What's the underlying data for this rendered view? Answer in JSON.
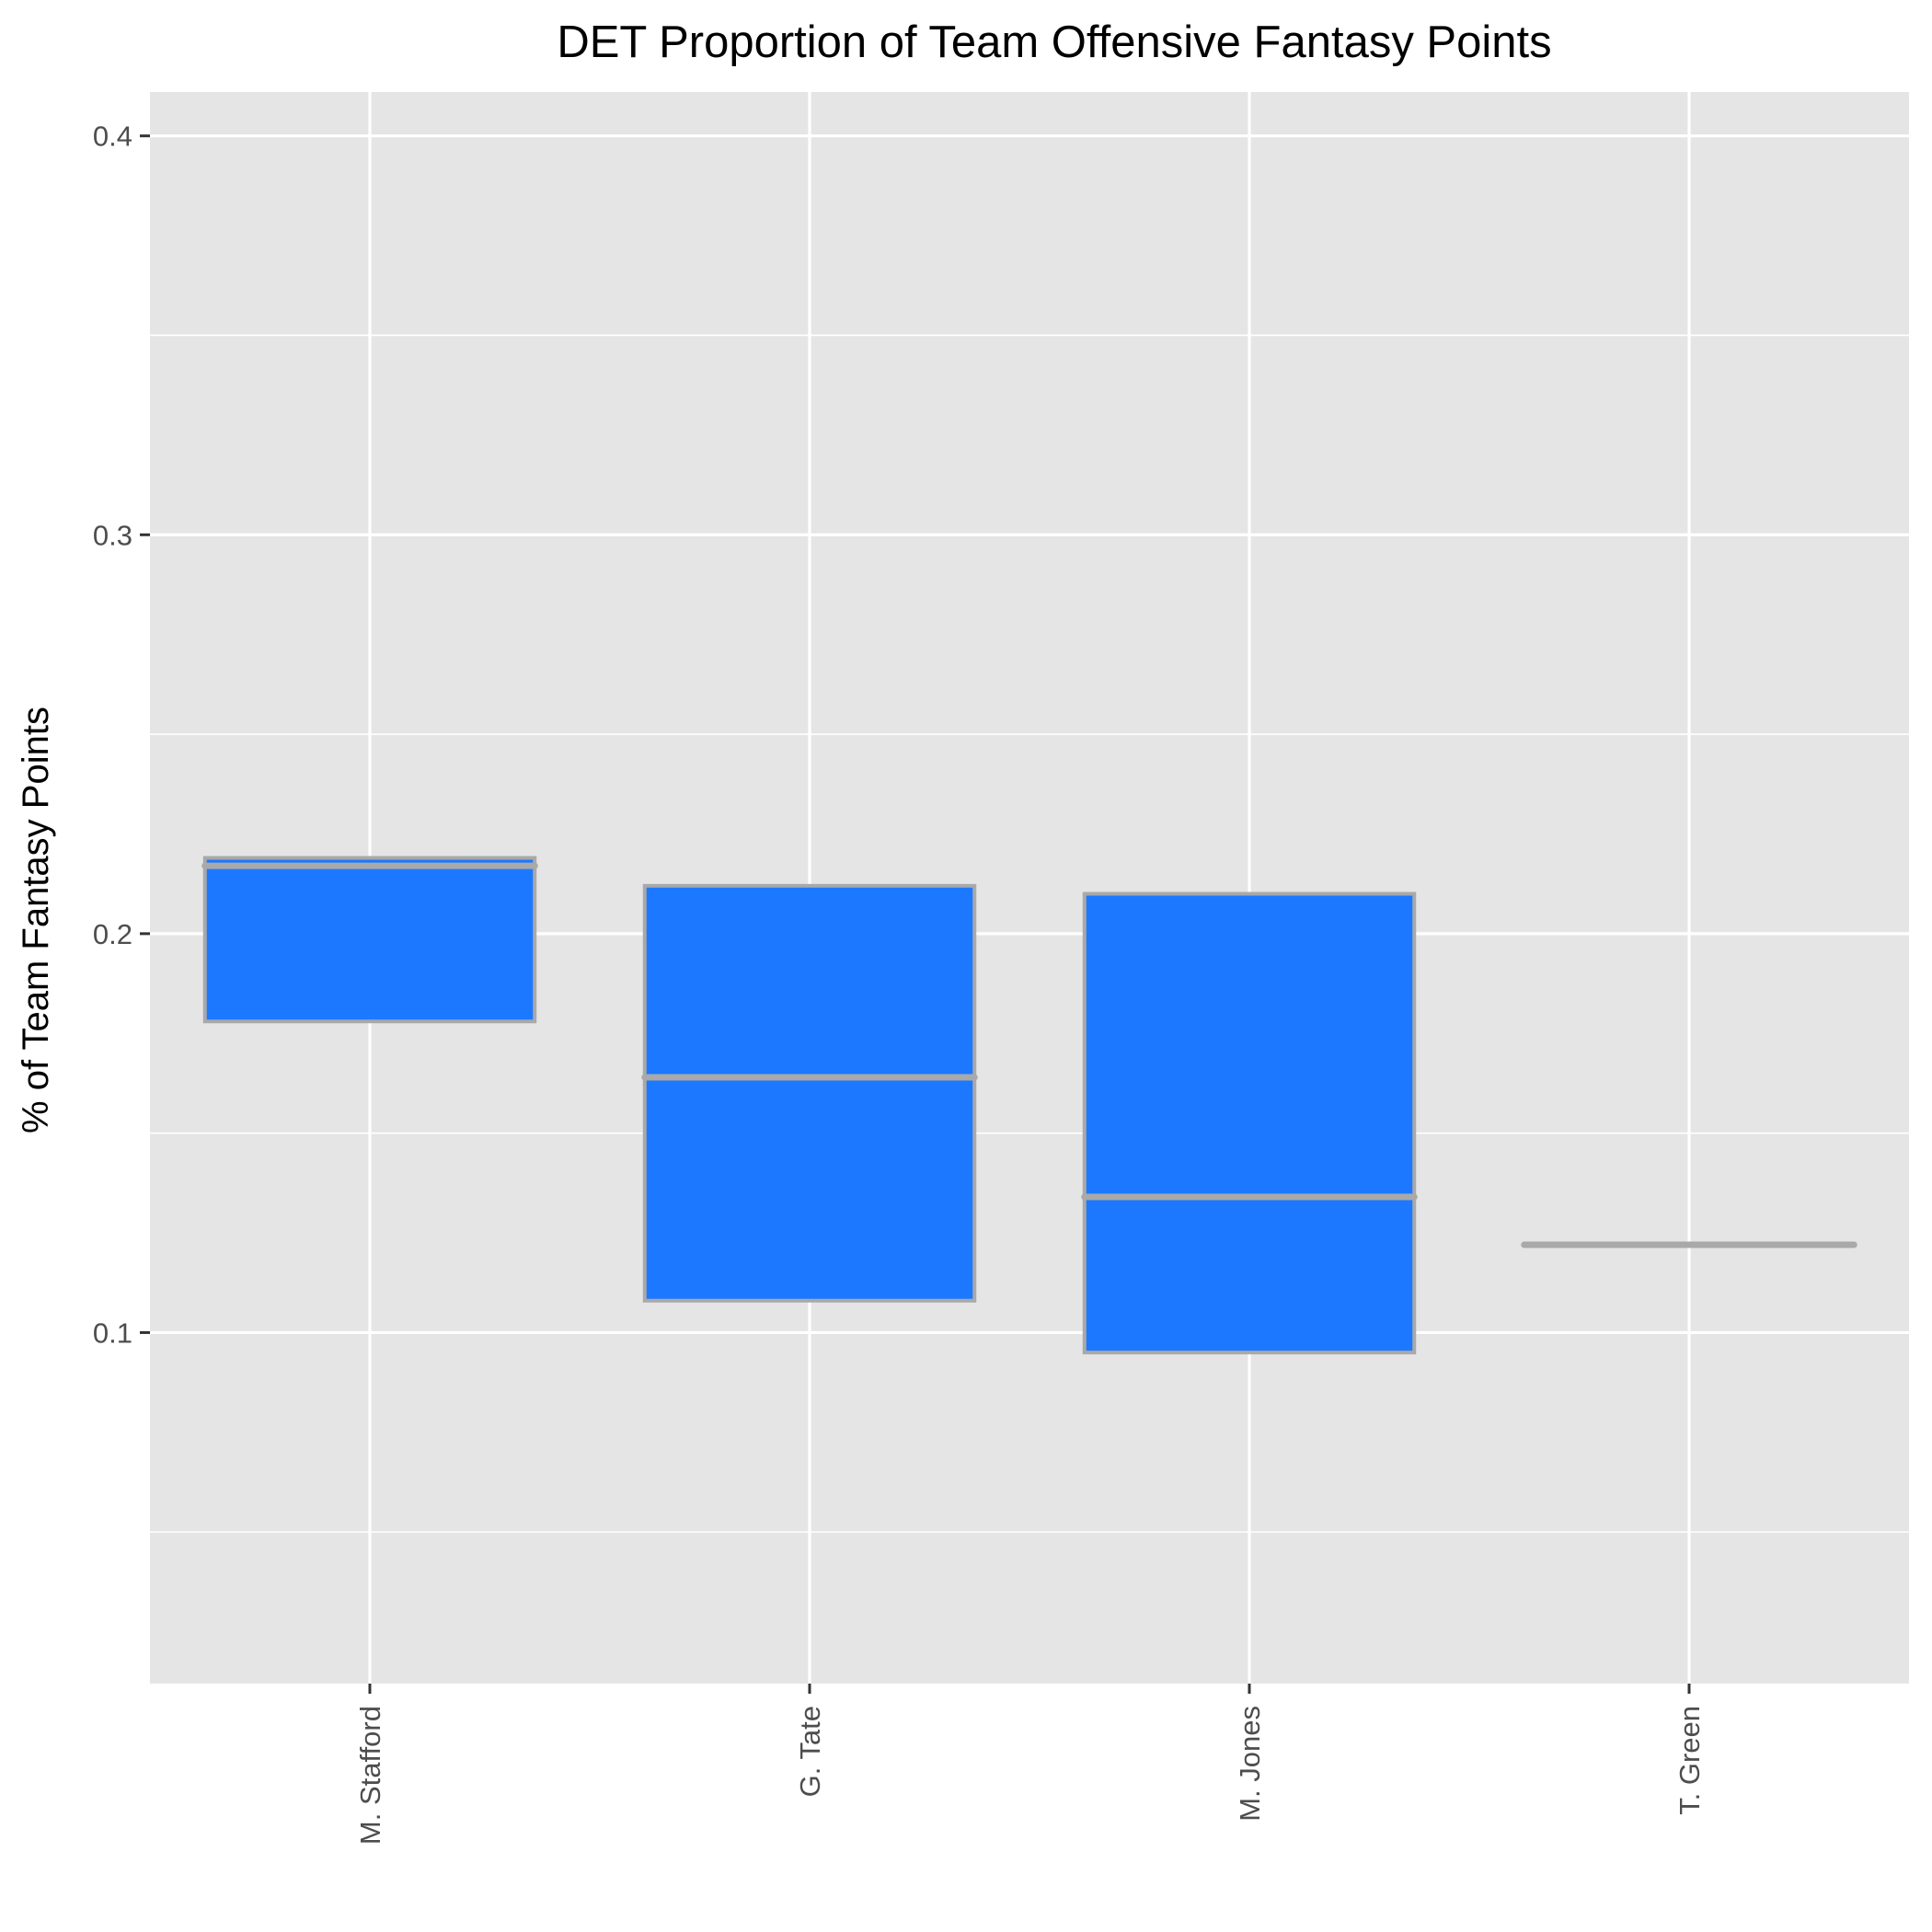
{
  "chart_data": {
    "type": "boxplot",
    "title": "DET Proportion of Team Offensive Fantasy Points",
    "xlabel": "",
    "ylabel": "% of Team Fantasy Points",
    "ylim": [
      0.012,
      0.411
    ],
    "y_ticks": [
      0.1,
      0.2,
      0.3,
      0.4
    ],
    "y_tick_labels": [
      "0.1",
      "0.2",
      "0.3",
      "0.4"
    ],
    "grid": true,
    "categories": [
      "M. Stafford",
      "G. Tate",
      "M. Jones",
      "T. Green"
    ],
    "boxes": [
      {
        "category": "M. Stafford",
        "lower": 0.178,
        "median": 0.217,
        "upper": 0.219
      },
      {
        "category": "G. Tate",
        "lower": 0.108,
        "median": 0.164,
        "upper": 0.212
      },
      {
        "category": "M. Jones",
        "lower": 0.095,
        "median": 0.134,
        "upper": 0.21
      },
      {
        "category": "T. Green",
        "lower": 0.122,
        "median": 0.122,
        "upper": 0.122
      }
    ],
    "box_fill": "#1c79ff",
    "box_outline": "#a9a9a9",
    "panel_background": "#e5e5e5",
    "grid_color": "#ffffff"
  }
}
